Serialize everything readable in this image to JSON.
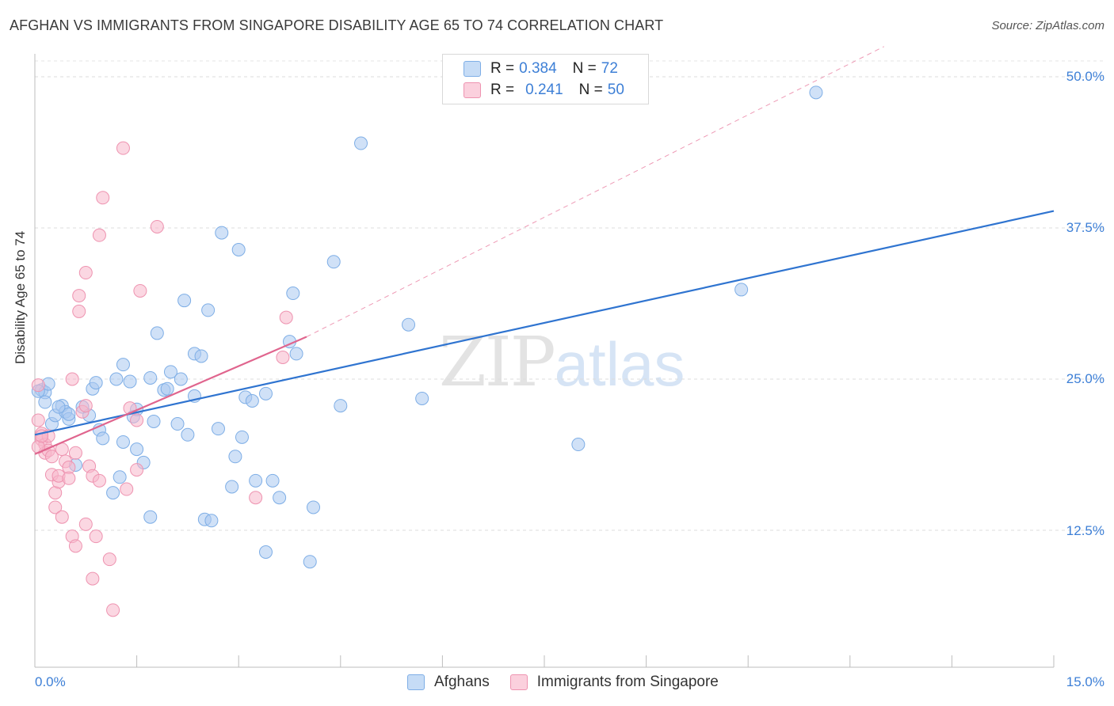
{
  "header": {
    "title": "AFGHAN VS IMMIGRANTS FROM SINGAPORE DISABILITY AGE 65 TO 74 CORRELATION CHART",
    "source": "Source: ZipAtlas.com"
  },
  "stats_box": {
    "rows": [
      {
        "r_label": "R =",
        "r_value": "0.384",
        "n_label": "N =",
        "n_value": "72",
        "color": "#a9c8f0"
      },
      {
        "r_label": "R =",
        "r_value": "0.241",
        "n_label": "N =",
        "n_value": "50",
        "color": "#f7b6ca"
      }
    ]
  },
  "watermark": {
    "zip": "ZIP",
    "atlas": "atlas"
  },
  "chart_data": {
    "type": "scatter",
    "title": "AFGHAN VS IMMIGRANTS FROM SINGAPORE DISABILITY AGE 65 TO 74 CORRELATION CHART",
    "xlabel": "",
    "ylabel": "Disability Age 65 to 74",
    "xlim": [
      0,
      15
    ],
    "ylim": [
      0,
      52.5
    ],
    "x_tick_labels": [
      "0.0%",
      "15.0%"
    ],
    "y_ticks": [
      12.5,
      25.0,
      37.5,
      50.0
    ],
    "y_tick_labels": [
      "12.5%",
      "25.0%",
      "37.5%",
      "50.0%"
    ],
    "grid": true,
    "legend": "bottom-center",
    "series": [
      {
        "name": "Afghans",
        "color": "#a9c8f0",
        "edge": "#7eaee6",
        "line_color": "#2f74d0",
        "trend": {
          "x": [
            0.0,
            15.0
          ],
          "y": [
            20.4,
            38.9
          ]
        },
        "points": [
          [
            0.1,
            24.1
          ],
          [
            0.15,
            23.9
          ],
          [
            0.15,
            23.1
          ],
          [
            0.2,
            24.6
          ],
          [
            0.25,
            21.3
          ],
          [
            0.3,
            22.0
          ],
          [
            0.4,
            22.8
          ],
          [
            0.45,
            22.3
          ],
          [
            0.5,
            21.7
          ],
          [
            0.5,
            22.1
          ],
          [
            0.6,
            17.9
          ],
          [
            0.7,
            22.7
          ],
          [
            0.8,
            22.0
          ],
          [
            0.85,
            24.2
          ],
          [
            0.9,
            24.7
          ],
          [
            0.95,
            20.8
          ],
          [
            1.0,
            20.1
          ],
          [
            1.15,
            15.6
          ],
          [
            1.2,
            25.0
          ],
          [
            1.25,
            16.9
          ],
          [
            1.3,
            26.2
          ],
          [
            1.3,
            19.8
          ],
          [
            1.4,
            24.8
          ],
          [
            1.45,
            21.9
          ],
          [
            1.5,
            22.5
          ],
          [
            1.5,
            19.2
          ],
          [
            1.6,
            18.1
          ],
          [
            1.7,
            25.1
          ],
          [
            1.7,
            13.6
          ],
          [
            1.75,
            21.5
          ],
          [
            1.8,
            28.8
          ],
          [
            1.9,
            24.1
          ],
          [
            1.95,
            24.2
          ],
          [
            2.0,
            25.6
          ],
          [
            2.1,
            21.3
          ],
          [
            2.15,
            25.0
          ],
          [
            2.2,
            31.5
          ],
          [
            2.25,
            20.4
          ],
          [
            2.35,
            23.6
          ],
          [
            2.35,
            27.1
          ],
          [
            2.45,
            26.9
          ],
          [
            2.5,
            13.4
          ],
          [
            2.55,
            30.7
          ],
          [
            2.6,
            13.3
          ],
          [
            2.7,
            20.9
          ],
          [
            2.75,
            37.1
          ],
          [
            2.9,
            16.1
          ],
          [
            2.95,
            18.6
          ],
          [
            3.0,
            35.7
          ],
          [
            3.05,
            20.2
          ],
          [
            3.1,
            23.5
          ],
          [
            3.2,
            23.2
          ],
          [
            3.25,
            16.6
          ],
          [
            3.4,
            23.8
          ],
          [
            3.4,
            10.7
          ],
          [
            3.5,
            16.6
          ],
          [
            3.6,
            15.2
          ],
          [
            3.75,
            28.1
          ],
          [
            3.8,
            32.1
          ],
          [
            3.85,
            27.1
          ],
          [
            4.05,
            9.9
          ],
          [
            4.1,
            14.4
          ],
          [
            4.4,
            34.7
          ],
          [
            4.5,
            22.8
          ],
          [
            4.8,
            44.5
          ],
          [
            5.5,
            29.5
          ],
          [
            5.7,
            23.4
          ],
          [
            8.0,
            19.6
          ],
          [
            10.4,
            32.4
          ],
          [
            11.5,
            48.7
          ],
          [
            0.05,
            24.0
          ],
          [
            0.35,
            22.7
          ]
        ]
      },
      {
        "name": "Immigrants from Singapore",
        "color": "#f7b6ca",
        "edge": "#ee93b0",
        "line_color": "#e0658e",
        "trend": {
          "x": [
            0.0,
            4.0
          ],
          "y": [
            18.8,
            28.5
          ]
        },
        "trend_ext": {
          "x": [
            4.0,
            12.5
          ],
          "y": [
            28.5,
            52.5
          ]
        },
        "points": [
          [
            0.05,
            24.5
          ],
          [
            0.05,
            21.6
          ],
          [
            0.1,
            20.5
          ],
          [
            0.1,
            20.0
          ],
          [
            0.15,
            18.9
          ],
          [
            0.15,
            19.6
          ],
          [
            0.2,
            20.3
          ],
          [
            0.2,
            19.1
          ],
          [
            0.25,
            17.1
          ],
          [
            0.25,
            18.6
          ],
          [
            0.3,
            15.6
          ],
          [
            0.3,
            14.4
          ],
          [
            0.35,
            16.5
          ],
          [
            0.35,
            17.0
          ],
          [
            0.4,
            19.2
          ],
          [
            0.4,
            13.6
          ],
          [
            0.45,
            18.2
          ],
          [
            0.5,
            17.7
          ],
          [
            0.5,
            16.8
          ],
          [
            0.55,
            25.0
          ],
          [
            0.55,
            12.0
          ],
          [
            0.6,
            18.9
          ],
          [
            0.6,
            11.2
          ],
          [
            0.65,
            30.6
          ],
          [
            0.65,
            31.9
          ],
          [
            0.7,
            22.3
          ],
          [
            0.75,
            13.0
          ],
          [
            0.75,
            22.8
          ],
          [
            0.75,
            33.8
          ],
          [
            0.8,
            17.8
          ],
          [
            0.85,
            17.0
          ],
          [
            0.85,
            8.5
          ],
          [
            0.9,
            12.0
          ],
          [
            0.95,
            16.6
          ],
          [
            0.95,
            36.9
          ],
          [
            1.0,
            40.0
          ],
          [
            1.1,
            10.1
          ],
          [
            1.15,
            5.9
          ],
          [
            1.3,
            44.1
          ],
          [
            1.35,
            15.9
          ],
          [
            1.4,
            22.6
          ],
          [
            1.5,
            17.5
          ],
          [
            1.5,
            21.6
          ],
          [
            1.55,
            32.3
          ],
          [
            1.8,
            37.6
          ],
          [
            3.25,
            15.2
          ],
          [
            3.65,
            26.8
          ],
          [
            3.7,
            30.1
          ],
          [
            0.05,
            19.4
          ],
          [
            0.1,
            20.3
          ]
        ]
      }
    ]
  }
}
